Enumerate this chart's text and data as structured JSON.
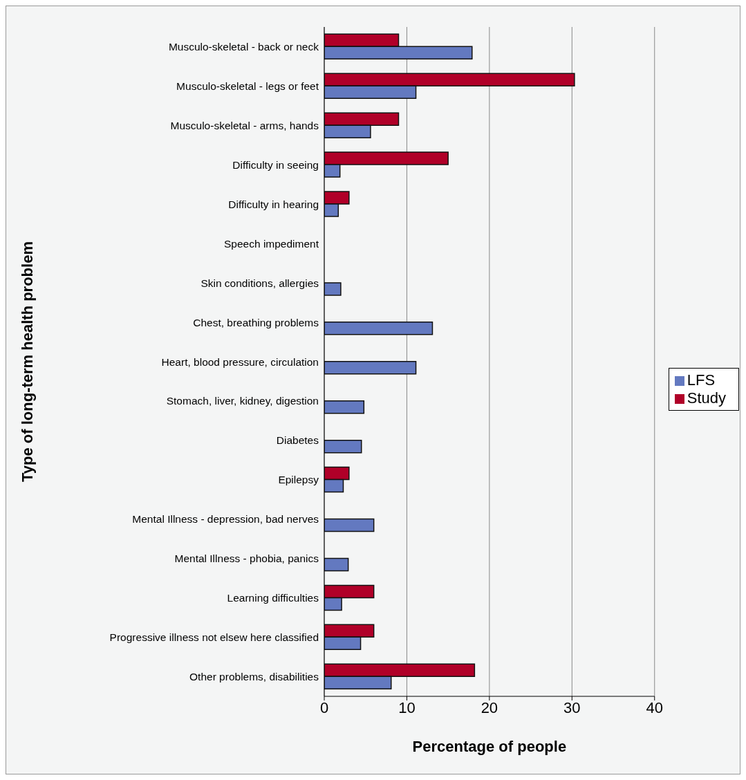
{
  "chart_data": {
    "type": "bar",
    "orientation": "horizontal",
    "categories": [
      "Musculo-skeletal - back or neck",
      "Musculo-skeletal - legs or feet",
      "Musculo-skeletal - arms, hands",
      "Difficulty in seeing",
      "Difficulty in hearing",
      "Speech impediment",
      "Skin conditions, allergies",
      "Chest, breathing problems",
      "Heart, blood pressure, circulation",
      "Stomach, liver, kidney, digestion",
      "Diabetes",
      "Epilepsy",
      "Mental Illness - depression, bad nerves",
      "Mental Illness - phobia, panics",
      "Learning difficulties",
      "Progressive illness not elsew here classified",
      "Other problems, disabilities"
    ],
    "series": [
      {
        "name": "Study",
        "color": "#b00028",
        "values": [
          9.0,
          30.3,
          9.0,
          15.0,
          3.0,
          null,
          null,
          null,
          null,
          null,
          null,
          3.0,
          null,
          null,
          6.0,
          6.0,
          18.2
        ]
      },
      {
        "name": "LFS",
        "color": "#6379c0",
        "values": [
          17.9,
          11.1,
          5.6,
          1.9,
          1.7,
          null,
          2.0,
          13.1,
          11.1,
          4.8,
          4.5,
          2.3,
          6.0,
          2.9,
          2.1,
          4.4,
          8.1
        ]
      }
    ],
    "xlabel": "Percentage of people",
    "ylabel": "Type of long-term health problem",
    "xlim": [
      0,
      40
    ],
    "xticks": [
      0,
      10,
      20,
      30,
      40
    ],
    "grid": "x",
    "legend": "right"
  }
}
